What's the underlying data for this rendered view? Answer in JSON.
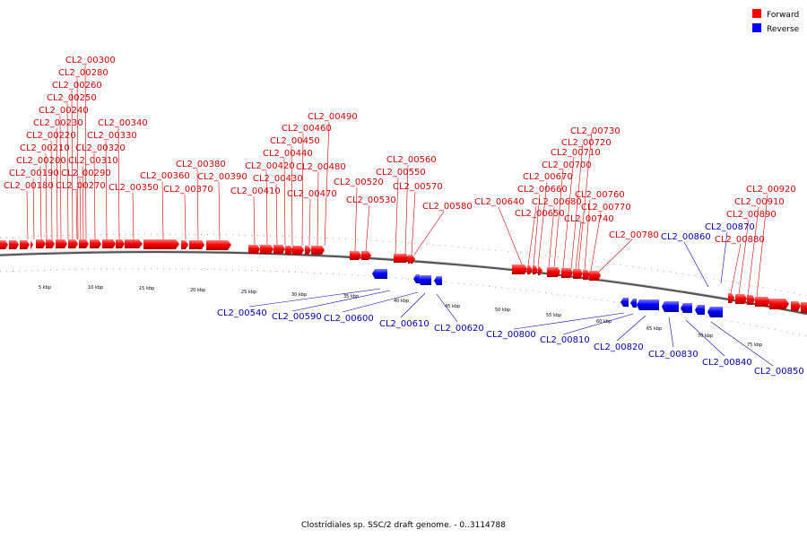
{
  "caption": "Clostridiales sp. SSC/2 draft genome. - 0..3114788",
  "legend": [
    {
      "label": "Forward",
      "color": "#ff0000"
    },
    {
      "label": "Reverse",
      "color": "#0000ff"
    }
  ],
  "colors": {
    "forward": "#ff0000",
    "reverse": "#0000ff",
    "forward_label": "#cc0000",
    "reverse_label": "#0000aa",
    "backbone": "#666666"
  },
  "ticks": [
    "5 kbp",
    "10 kbp",
    "15 kbp",
    "20 kbp",
    "25 kbp",
    "30 kbp",
    "35 kbp",
    "40 kbp",
    "45 kbp",
    "50 kbp",
    "55 kbp",
    "60 kbp",
    "65 kbp",
    "70 kbp",
    "75 kbp"
  ],
  "genes_forward": [
    "CL2_00180",
    "CL2_00190",
    "CL2_00200",
    "CL2_00210",
    "CL2_00220",
    "CL2_00230",
    "CL2_00240",
    "CL2_00250",
    "CL2_00260",
    "CL2_00280",
    "CL2_00300",
    "CL2_00270",
    "CL2_00290",
    "CL2_00310",
    "CL2_00320",
    "CL2_00330",
    "CL2_00340",
    "CL2_00350",
    "CL2_00360",
    "CL2_00370",
    "CL2_00380",
    "CL2_00390",
    "CL2_00410",
    "CL2_00420",
    "CL2_00430",
    "CL2_00440",
    "CL2_00450",
    "CL2_00460",
    "CL2_00470",
    "CL2_00480",
    "CL2_00490",
    "CL2_00520",
    "CL2_00530",
    "CL2_00550",
    "CL2_00560",
    "CL2_00570",
    "CL2_00580",
    "CL2_00640",
    "CL2_00650",
    "CL2_00660",
    "CL2_00670",
    "CL2_00680",
    "CL2_00700",
    "CL2_00710",
    "CL2_00720",
    "CL2_00730",
    "CL2_00740",
    "CL2_00760",
    "CL2_00770",
    "CL2_00780",
    "CL2_00880",
    "CL2_00890",
    "CL2_00910",
    "CL2_00920"
  ],
  "genes_reverse": [
    "CL2_00540",
    "CL2_00590",
    "CL2_00600",
    "CL2_00610",
    "CL2_00620",
    "CL2_00800",
    "CL2_00810",
    "CL2_00820",
    "CL2_00830",
    "CL2_00840",
    "CL2_00850",
    "CL2_00860",
    "CL2_00870"
  ]
}
